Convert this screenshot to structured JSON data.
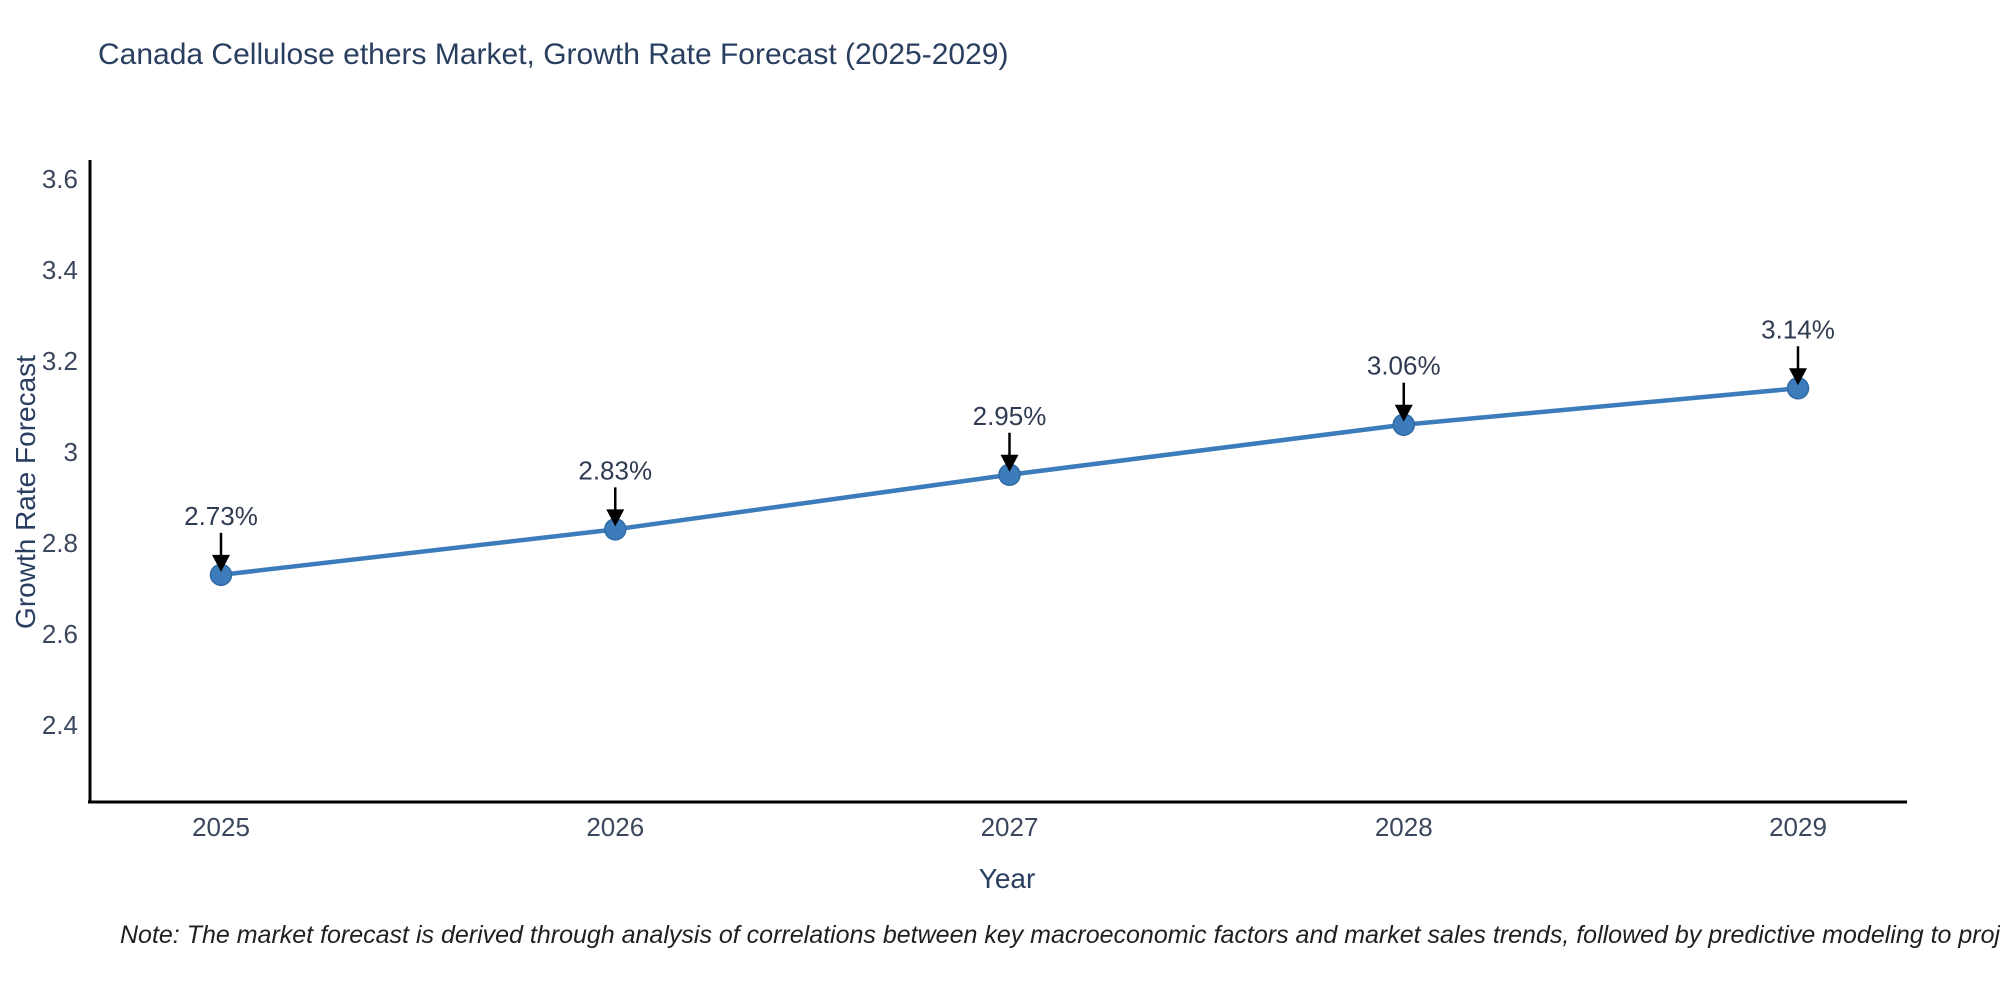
{
  "title": "Canada Cellulose ethers Market, Growth Rate Forecast (2025-2029)",
  "note": "Note: The market forecast is derived through analysis of correlations between key macroeconomic factors and market sales trends, followed by predictive modeling to project future sales",
  "chart_data": {
    "type": "line",
    "title": "Canada Cellulose ethers Market, Growth Rate Forecast (2025-2029)",
    "xlabel": "Year",
    "ylabel": "Growth Rate Forecast",
    "categories": [
      "2025",
      "2026",
      "2027",
      "2028",
      "2029"
    ],
    "values": [
      2.73,
      2.83,
      2.95,
      3.06,
      3.14
    ],
    "point_labels": [
      "2.73%",
      "2.83%",
      "2.95%",
      "3.06%",
      "3.14%"
    ],
    "ytick_values": [
      2.4,
      2.6,
      2.8,
      3.0,
      3.2,
      3.4,
      3.6
    ],
    "ytick_labels": [
      "2.4",
      "2.6",
      "2.8",
      "3",
      "3.2",
      "3.4",
      "3.6"
    ],
    "ylim": [
      2.22,
      3.65
    ],
    "grid": false,
    "legend_position": "none",
    "annotation_style": "value label above point with downward black arrow",
    "colors": {
      "line": "#3c7cba",
      "marker_fill": "#3c7cba",
      "marker_edge": "#2f6ba6",
      "arrow": "#000000",
      "axis_line": "#000000",
      "title_text": "#2a3f5f",
      "tick_text": "#3b475c",
      "annotation_text": "#2f3b50",
      "note_text": "#1f1f1f",
      "background": "#ffffff"
    }
  }
}
